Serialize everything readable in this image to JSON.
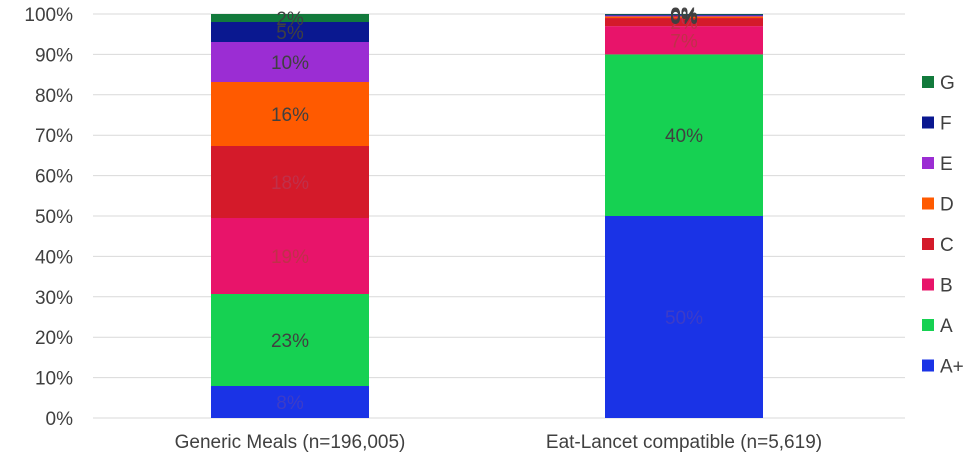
{
  "chart_data": {
    "type": "bar",
    "stacked": true,
    "percent_stacked": true,
    "categories": [
      "Generic Meals (n=196,005)",
      "Eat-Lancet compatible (n=5,619)"
    ],
    "series": [
      {
        "name": "A+",
        "color": "#1a33e6",
        "values": [
          8,
          50
        ],
        "labels": [
          "8%",
          "50%"
        ],
        "label_color": "#3c3cc8"
      },
      {
        "name": "A",
        "color": "#16d152",
        "values": [
          23,
          40
        ],
        "labels": [
          "23%",
          "40%"
        ],
        "label_color": "#404040"
      },
      {
        "name": "B",
        "color": "#e8146a",
        "values": [
          19,
          7
        ],
        "labels": [
          "19%",
          "7%"
        ],
        "label_color": "#c0304a"
      },
      {
        "name": "C",
        "color": "#d41a2a",
        "values": [
          18,
          2
        ],
        "labels": [
          "18%",
          "2%"
        ],
        "label_color": "#c0304a"
      },
      {
        "name": "D",
        "color": "#ff5a00",
        "values": [
          16,
          0.4
        ],
        "labels": [
          "16%",
          "0%"
        ],
        "label_color": "#404040"
      },
      {
        "name": "E",
        "color": "#9b2dd3",
        "values": [
          10,
          0.2
        ],
        "labels": [
          "10%",
          "0%"
        ],
        "label_color": "#404040"
      },
      {
        "name": "F",
        "color": "#0a1890",
        "values": [
          5,
          0.3
        ],
        "labels": [
          "5%",
          "0%"
        ],
        "label_color": "#404040"
      },
      {
        "name": "G",
        "color": "#127a3c",
        "values": [
          2,
          0.1
        ],
        "labels": [
          "2%",
          "0%"
        ],
        "label_color": "#404040"
      }
    ],
    "yticks": [
      "0%",
      "10%",
      "20%",
      "30%",
      "40%",
      "50%",
      "60%",
      "70%",
      "80%",
      "90%",
      "100%"
    ],
    "ylim": [
      0,
      100
    ],
    "grid": true,
    "legend_position": "right"
  }
}
